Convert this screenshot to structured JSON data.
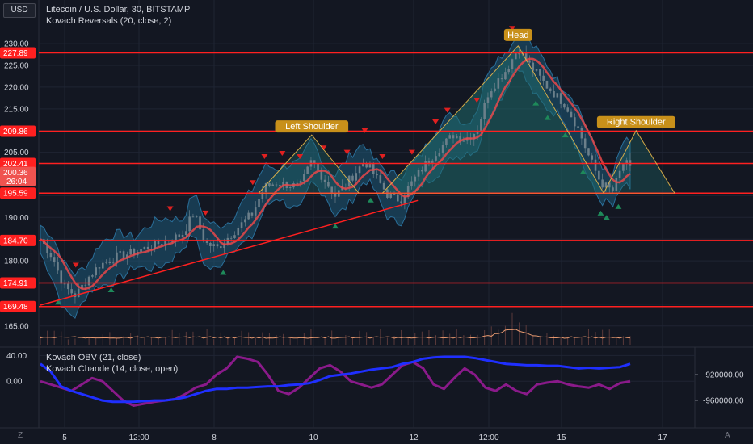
{
  "header": {
    "currency_button": "USD",
    "symbol_title": "Litecoin / U.S. Dollar, 30, BITSTAMP",
    "indicator_main": "Kovach Reversals (20, close, 2)",
    "indicator_obv": "Kovach OBV (21, close)",
    "indicator_chande": "Kovach Chande (14, close, open)"
  },
  "footer": {
    "left_icon": "Z",
    "right_icon": "A"
  },
  "colors": {
    "background": "#131722",
    "grid": "#1f2433",
    "candle": "#6b7f8a",
    "band": "#1e5a78",
    "ma": "#e8484a",
    "level": "#ff2020",
    "pattern": "#e8b84a",
    "label_bg": "#c8901a",
    "up_arrow": "#1e8a5a",
    "down_arrow": "#e02020",
    "obv": "#1f2fff",
    "chande": "#8a1a8a",
    "volume": "#e89a70"
  },
  "chart_data": [
    {
      "type": "candlestick",
      "title": "Litecoin / U.S. Dollar, 30, BITSTAMP",
      "ylim": [
        160.5,
        233
      ],
      "yticks": [
        165,
        170,
        175,
        180,
        185,
        190,
        195,
        200,
        205,
        210,
        215,
        220,
        225,
        230
      ],
      "ytick_labels": [
        "165.00",
        "170.00",
        "175.00",
        "180.00",
        "185.00",
        "190.00",
        "195.00",
        "200.00",
        "205.00",
        "210.00",
        "215.00",
        "220.00",
        "225.00",
        "230.00"
      ],
      "xticks": [
        "5",
        "12:00",
        "8",
        "10",
        "12",
        "12:00",
        "15",
        "17"
      ],
      "grid": true,
      "levels": [
        {
          "value": 227.89,
          "label": "227.89"
        },
        {
          "value": 209.86,
          "label": "209.86"
        },
        {
          "value": 202.41,
          "label": "202.41"
        },
        {
          "value": 195.59,
          "label": "195.59"
        },
        {
          "value": 184.7,
          "label": "184.70"
        },
        {
          "value": 174.91,
          "label": "174.91"
        },
        {
          "value": 169.48,
          "label": "169.48"
        }
      ],
      "current_price": {
        "value": 200.36,
        "label": "200.36",
        "countdown": "26:04"
      },
      "close_path": [
        [
          0,
          185
        ],
        [
          0.02,
          181
        ],
        [
          0.04,
          174
        ],
        [
          0.06,
          172
        ],
        [
          0.08,
          176
        ],
        [
          0.1,
          179
        ],
        [
          0.13,
          181
        ],
        [
          0.16,
          182
        ],
        [
          0.2,
          184
        ],
        [
          0.24,
          186
        ],
        [
          0.26,
          191
        ],
        [
          0.28,
          184
        ],
        [
          0.3,
          183
        ],
        [
          0.33,
          187
        ],
        [
          0.36,
          191
        ],
        [
          0.38,
          197
        ],
        [
          0.4,
          198
        ],
        [
          0.44,
          197
        ],
        [
          0.46,
          203
        ],
        [
          0.48,
          199
        ],
        [
          0.5,
          195
        ],
        [
          0.52,
          198
        ],
        [
          0.55,
          203
        ],
        [
          0.57,
          199
        ],
        [
          0.59,
          195
        ],
        [
          0.61,
          194
        ],
        [
          0.64,
          200
        ],
        [
          0.67,
          205
        ],
        [
          0.7,
          209
        ],
        [
          0.72,
          208
        ],
        [
          0.74,
          210
        ],
        [
          0.76,
          219
        ],
        [
          0.79,
          224
        ],
        [
          0.81,
          229
        ],
        [
          0.83,
          225
        ],
        [
          0.86,
          220
        ],
        [
          0.89,
          216
        ],
        [
          0.91,
          211
        ],
        [
          0.93,
          204
        ],
        [
          0.95,
          198
        ],
        [
          0.97,
          196
        ],
        [
          0.99,
          203
        ],
        [
          1,
          201
        ]
      ],
      "series": [
        {
          "name": "Kovach Reversals (20, close, 2)"
        }
      ],
      "pattern": {
        "name": "head and shoulders",
        "labels": [
          "Left Shoulder",
          "Head",
          "Right Shoulder"
        ],
        "neckline": 195.59,
        "left_shoulder_peak": 209.0,
        "head_peak": 229.5,
        "right_shoulder_peak": 210.0
      },
      "trendline": {
        "from": 169.8,
        "to": 193.9
      }
    },
    {
      "type": "line",
      "title": "Kovach OBV (21, close) / Kovach Chande (14, close, open)",
      "ylim": [
        -70,
        43
      ],
      "yticks": [
        40,
        0
      ],
      "ytick_labels": [
        "40.00",
        "0.00"
      ],
      "right_ticks": [
        "-920000.00",
        "-960000.00"
      ],
      "series": [
        {
          "name": "Kovach OBV (21, close)",
          "values": [
            27,
            15,
            -8,
            -15,
            -20,
            -25,
            -30,
            -32,
            -32,
            -32,
            -31,
            -30,
            -30,
            -28,
            -25,
            -20,
            -15,
            -12,
            -12,
            -10,
            -10,
            -9,
            -8,
            -8,
            -6,
            -5,
            -3,
            2,
            8,
            10,
            12,
            15,
            18,
            20,
            22,
            27,
            30,
            35,
            37,
            38,
            38,
            38,
            36,
            33,
            30,
            27,
            26,
            25,
            25,
            24,
            24,
            22,
            20,
            21,
            20,
            21,
            22,
            27
          ]
        },
        {
          "name": "Kovach Chande (14, close, open)",
          "values": [
            0,
            -5,
            -10,
            -15,
            -5,
            5,
            0,
            -15,
            -30,
            -38,
            -35,
            -32,
            -30,
            -28,
            -20,
            -10,
            -5,
            10,
            20,
            38,
            35,
            30,
            10,
            -15,
            -20,
            -10,
            5,
            20,
            25,
            15,
            0,
            -5,
            -10,
            -5,
            10,
            25,
            30,
            20,
            -5,
            -12,
            5,
            20,
            10,
            -10,
            -15,
            -5,
            -15,
            -20,
            -5,
            -2,
            0,
            -5,
            -8,
            -10,
            -5,
            -12,
            -3,
            0
          ]
        }
      ]
    }
  ]
}
